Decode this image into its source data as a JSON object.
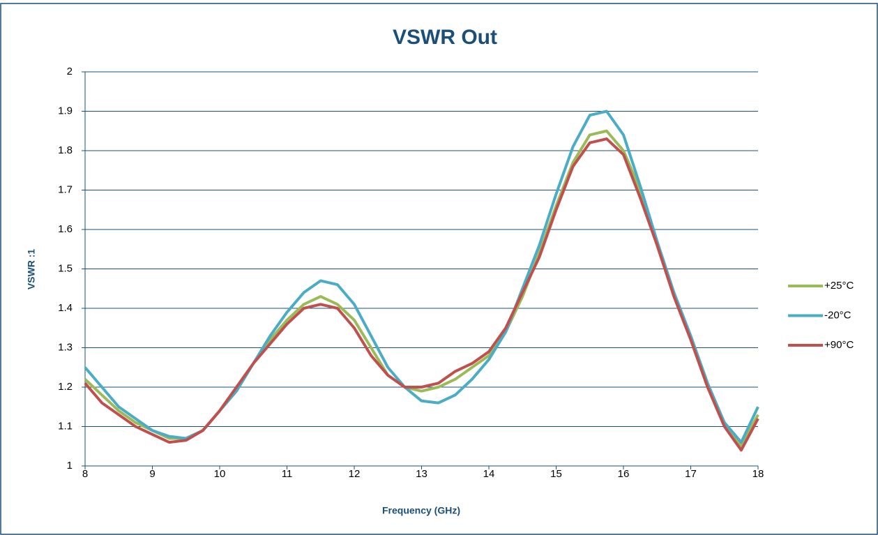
{
  "chart_data": {
    "type": "line",
    "title": "VSWR Out",
    "x_label": "Frequency (GHz)",
    "y_label": "VSWR :1",
    "x": [
      8,
      8.25,
      8.5,
      8.75,
      9,
      9.25,
      9.5,
      9.75,
      10,
      10.25,
      10.5,
      10.75,
      11,
      11.25,
      11.5,
      11.75,
      12,
      12.25,
      12.5,
      12.75,
      13,
      13.25,
      13.5,
      13.75,
      14,
      14.25,
      14.5,
      14.75,
      15,
      15.25,
      15.5,
      15.75,
      16,
      16.25,
      16.5,
      16.75,
      17,
      17.25,
      17.5,
      17.75,
      18
    ],
    "series": [
      {
        "name": "+25°C",
        "color": "#9bbb59",
        "values": [
          1.22,
          1.18,
          1.14,
          1.11,
          1.09,
          1.07,
          1.07,
          1.09,
          1.14,
          1.2,
          1.26,
          1.32,
          1.37,
          1.41,
          1.43,
          1.41,
          1.37,
          1.3,
          1.23,
          1.2,
          1.19,
          1.2,
          1.22,
          1.25,
          1.28,
          1.34,
          1.43,
          1.54,
          1.66,
          1.77,
          1.84,
          1.85,
          1.8,
          1.7,
          1.56,
          1.43,
          1.32,
          1.2,
          1.11,
          1.05,
          1.13
        ]
      },
      {
        "name": "-20°C",
        "color": "#4bacc6",
        "values": [
          1.25,
          1.2,
          1.15,
          1.12,
          1.09,
          1.075,
          1.07,
          1.09,
          1.14,
          1.19,
          1.26,
          1.33,
          1.39,
          1.44,
          1.47,
          1.46,
          1.41,
          1.33,
          1.25,
          1.2,
          1.165,
          1.16,
          1.18,
          1.22,
          1.27,
          1.34,
          1.45,
          1.56,
          1.69,
          1.81,
          1.89,
          1.9,
          1.84,
          1.71,
          1.57,
          1.44,
          1.33,
          1.21,
          1.11,
          1.06,
          1.15
        ]
      },
      {
        "name": "+90°C",
        "color": "#c0504d",
        "values": [
          1.21,
          1.16,
          1.13,
          1.1,
          1.08,
          1.06,
          1.065,
          1.09,
          1.14,
          1.2,
          1.26,
          1.31,
          1.36,
          1.4,
          1.41,
          1.4,
          1.35,
          1.28,
          1.23,
          1.2,
          1.2,
          1.21,
          1.24,
          1.26,
          1.29,
          1.35,
          1.44,
          1.53,
          1.65,
          1.76,
          1.82,
          1.83,
          1.79,
          1.68,
          1.56,
          1.43,
          1.32,
          1.2,
          1.1,
          1.04,
          1.12
        ]
      }
    ],
    "xlim": [
      8,
      18
    ],
    "xticks": [
      8,
      9,
      10,
      11,
      12,
      13,
      14,
      15,
      16,
      17,
      18
    ],
    "ylim": [
      1,
      2
    ],
    "yticks": [
      1,
      1.1,
      1.2,
      1.3,
      1.4,
      1.5,
      1.6,
      1.7,
      1.8,
      1.9,
      2
    ],
    "grid": true,
    "legend": "right"
  }
}
